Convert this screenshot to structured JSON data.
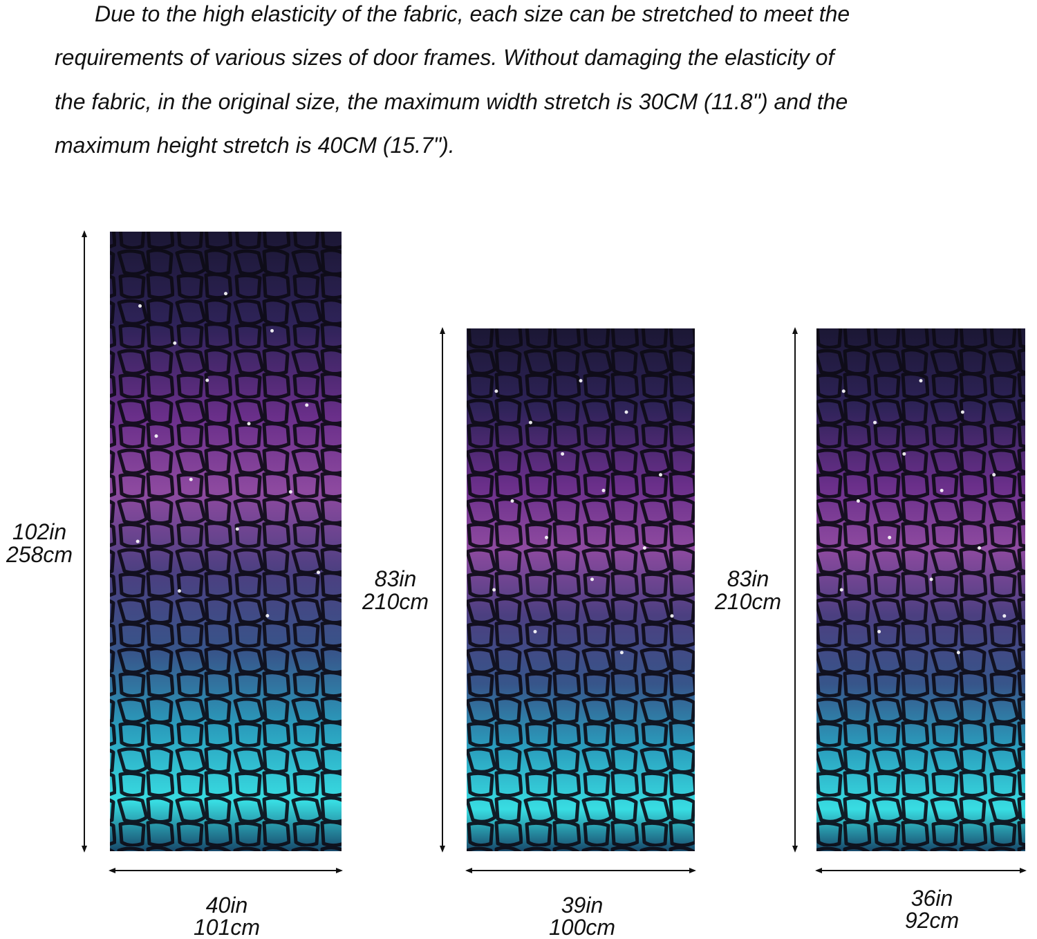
{
  "description": {
    "lines": [
      "Due to the high elasticity of the fabric, each size can be stretched to meet the",
      "requirements of various sizes of door frames. Without damaging the elasticity of",
      "the fabric, in the original size, the maximum width stretch is 30CM (11.8\") and the",
      "maximum height stretch is 40CM (15.7\")."
    ]
  },
  "panels": [
    {
      "height_in": "102in",
      "height_cm": "258cm",
      "width_in": "40in",
      "width_cm": "101cm"
    },
    {
      "height_in": "83in",
      "height_cm": "210cm",
      "width_in": "39in",
      "width_cm": "100cm"
    },
    {
      "height_in": "83in",
      "height_cm": "210cm",
      "width_in": "36in",
      "width_cm": "92cm"
    }
  ]
}
